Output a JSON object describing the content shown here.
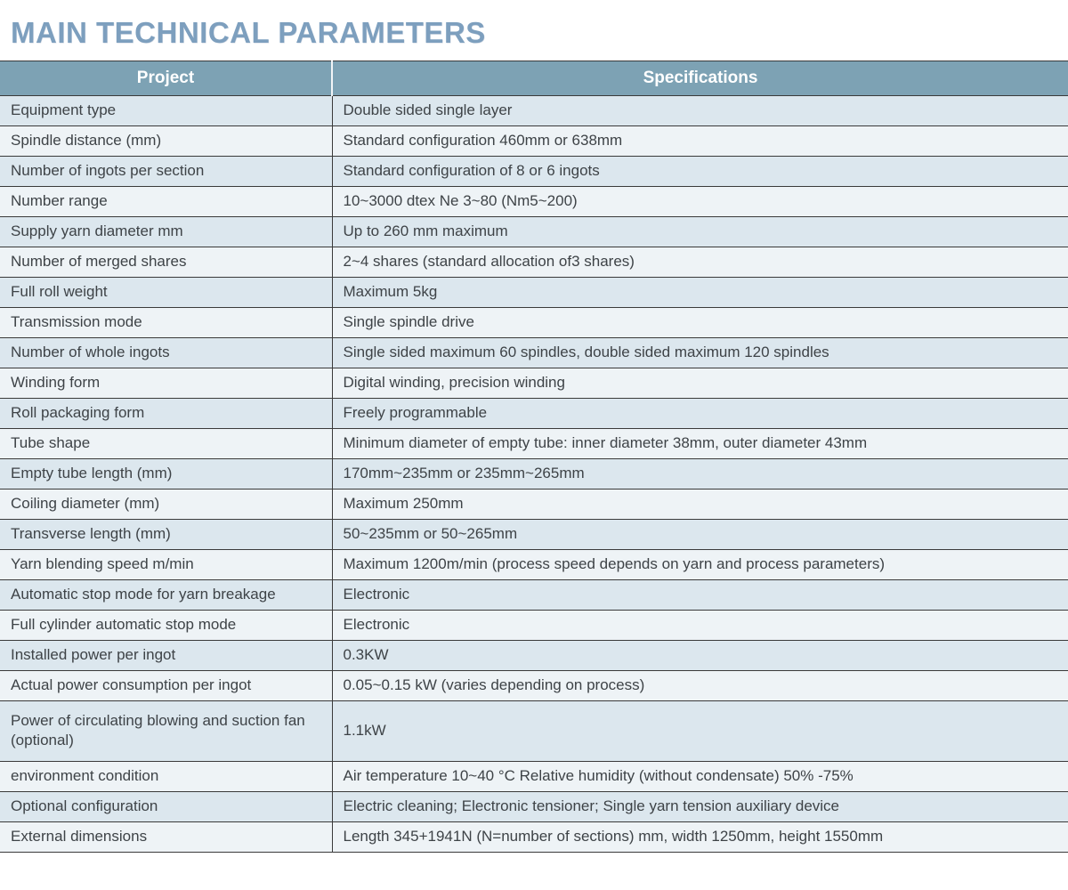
{
  "page": {
    "title": "MAIN TECHNICAL PARAMETERS"
  },
  "colors": {
    "title_text": "#7d9fbe",
    "header_bg": "#7da2b4",
    "header_text": "#ffffff",
    "row_odd_bg": "#dce7ee",
    "row_even_bg": "#eef3f6",
    "border": "#3a3a3a",
    "body_text": "#3e4347"
  },
  "table": {
    "columns": [
      "Project",
      "Specifications"
    ],
    "rows": [
      {
        "project": "Equipment type",
        "specification": "Double sided single layer"
      },
      {
        "project": "Spindle distance (mm)",
        "specification": "Standard configuration 460mm or 638mm"
      },
      {
        "project": "Number of ingots per section",
        "specification": "Standard configuration of 8 or 6 ingots"
      },
      {
        "project": "Number range",
        "specification": "10~3000 dtex Ne 3~80 (Nm5~200)"
      },
      {
        "project": "Supply yarn diameter mm",
        "specification": "Up to 260 mm maximum"
      },
      {
        "project": "Number of merged shares",
        "specification": "2~4 shares (standard allocation of3 shares)"
      },
      {
        "project": "Full roll weight",
        "specification": "Maximum 5kg"
      },
      {
        "project": "Transmission mode",
        "specification": "Single spindle drive"
      },
      {
        "project": "Number of whole ingots",
        "specification": "Single sided maximum 60 spindles, double sided maximum 120 spindles"
      },
      {
        "project": "Winding form",
        "specification": "Digital winding, precision winding"
      },
      {
        "project": "Roll packaging form",
        "specification": "Freely programmable"
      },
      {
        "project": "Tube shape",
        "specification": "Minimum diameter of empty tube: inner diameter 38mm, outer diameter 43mm"
      },
      {
        "project": "Empty tube length (mm)",
        "specification": "170mm~235mm or 235mm~265mm"
      },
      {
        "project": "Coiling diameter (mm)",
        "specification": "Maximum 250mm"
      },
      {
        "project": "Transverse length (mm)",
        "specification": "50~235mm or 50~265mm"
      },
      {
        "project": "Yarn blending speed m/min",
        "specification": "Maximum 1200m/min (process speed depends on yarn and process parameters)"
      },
      {
        "project": "Automatic stop mode for yarn breakage",
        "specification": "Electronic"
      },
      {
        "project": "Full cylinder automatic stop mode",
        "specification": "Electronic"
      },
      {
        "project": "Installed power per ingot",
        "specification": "0.3KW"
      },
      {
        "project": "Actual power consumption per ingot",
        "specification": "0.05~0.15 kW (varies depending on process)"
      },
      {
        "project": "Power of circulating blowing and suction fan (optional)",
        "specification": "1.1kW",
        "tall": true
      },
      {
        "project": "environment condition",
        "specification": "Air temperature 10~40 °C Relative humidity (without condensate) 50% -75%"
      },
      {
        "project": "Optional configuration",
        "specification": "Electric cleaning; Electronic tensioner; Single yarn tension auxiliary device"
      },
      {
        "project": "External dimensions",
        "specification": "Length 345+1941N (N=number of sections) mm, width 1250mm, height 1550mm"
      }
    ]
  }
}
